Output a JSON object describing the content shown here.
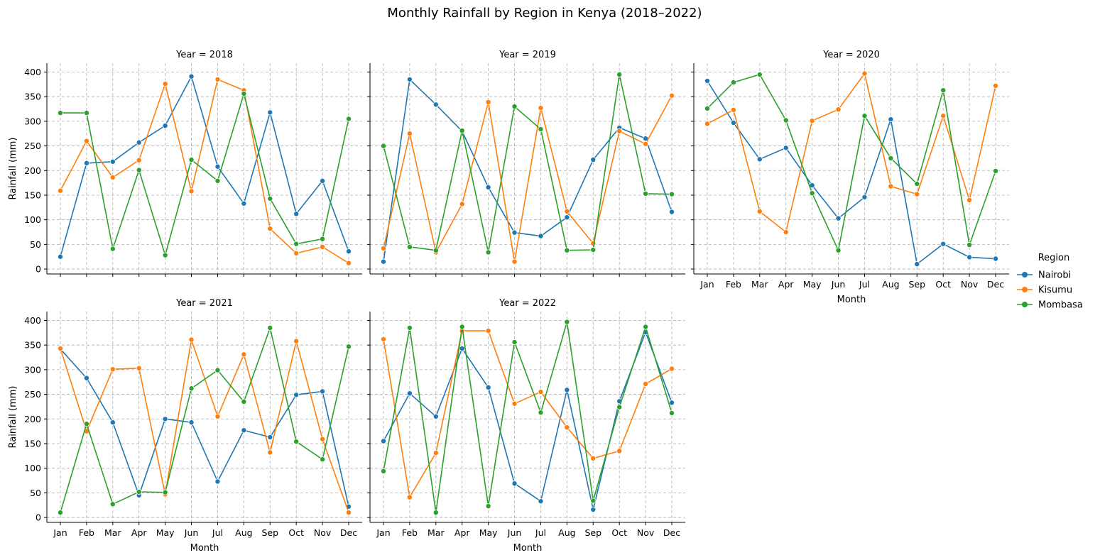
{
  "chart_data": {
    "type": "line",
    "title": "Monthly Rainfall by Region in Kenya (2018–2022)",
    "xlabel": "Month",
    "ylabel": "Rainfall (mm)",
    "ylim": [
      -10,
      418
    ],
    "yticks": [
      0,
      50,
      100,
      150,
      200,
      250,
      300,
      350,
      400
    ],
    "grid": true,
    "legend": {
      "title": "Region",
      "placement": "right"
    },
    "categories": [
      "Jan",
      "Feb",
      "Mar",
      "Apr",
      "May",
      "Jun",
      "Jul",
      "Aug",
      "Sep",
      "Oct",
      "Nov",
      "Dec"
    ],
    "series_colors": {
      "Nairobi": "#1f77b4",
      "Kisumu": "#ff7f0e",
      "Mombasa": "#2ca02c"
    },
    "panels": [
      {
        "title": "Year = 2018",
        "series": [
          {
            "name": "Nairobi",
            "values": [
              25,
              215,
              218,
              257,
              291,
              391,
              208,
              133,
              318,
              112,
              179,
              36
            ]
          },
          {
            "name": "Kisumu",
            "values": [
              159,
              260,
              186,
              221,
              376,
              158,
              385,
              363,
              82,
              32,
              45,
              12
            ]
          },
          {
            "name": "Mombasa",
            "values": [
              317,
              317,
              41,
              201,
              28,
              222,
              179,
              356,
              143,
              51,
              61,
              305
            ]
          }
        ]
      },
      {
        "title": "Year = 2019",
        "series": [
          {
            "name": "Nairobi",
            "values": [
              15,
              385,
              334,
              280,
              166,
              74,
              67,
              105,
              222,
              287,
              265,
              116
            ]
          },
          {
            "name": "Kisumu",
            "values": [
              42,
              275,
              34,
              132,
              339,
              15,
              327,
              117,
              52,
              280,
              254,
              352
            ]
          },
          {
            "name": "Mombasa",
            "values": [
              250,
              45,
              38,
              281,
              34,
              330,
              284,
              38,
              39,
              395,
              153,
              152
            ]
          }
        ]
      },
      {
        "title": "Year = 2020",
        "series": [
          {
            "name": "Nairobi",
            "values": [
              382,
              297,
              223,
              246,
              170,
              103,
              146,
              304,
              10,
              51,
              24,
              21
            ]
          },
          {
            "name": "Kisumu",
            "values": [
              295,
              323,
              117,
              75,
              301,
              324,
              397,
              168,
              152,
              311,
              140,
              372
            ]
          },
          {
            "name": "Mombasa",
            "values": [
              326,
              379,
              395,
              302,
              154,
              38,
              311,
              225,
              173,
              363,
              49,
              199
            ]
          }
        ]
      },
      {
        "title": "Year = 2021",
        "series": [
          {
            "name": "Nairobi",
            "values": [
              342,
              283,
              193,
              45,
              200,
              193,
              73,
              177,
              163,
              249,
              256,
              22
            ]
          },
          {
            "name": "Kisumu",
            "values": [
              343,
              175,
              301,
              303,
              47,
              361,
              205,
              331,
              132,
              358,
              159,
              10
            ]
          },
          {
            "name": "Mombasa",
            "values": [
              10,
              190,
              27,
              52,
              51,
              262,
              299,
              235,
              385,
              154,
              118,
              347
            ]
          }
        ]
      },
      {
        "title": "Year = 2022",
        "series": [
          {
            "name": "Nairobi",
            "values": [
              155,
              252,
              205,
              343,
              264,
              69,
              33,
              259,
              16,
              236,
              376,
              233
            ]
          },
          {
            "name": "Kisumu",
            "values": [
              362,
              41,
              131,
              379,
              379,
              231,
              255,
              183,
              120,
              135,
              271,
              302
            ]
          },
          {
            "name": "Mombasa",
            "values": [
              94,
              385,
              10,
              387,
              23,
              356,
              213,
              397,
              34,
              224,
              387,
              212
            ]
          }
        ]
      }
    ]
  }
}
